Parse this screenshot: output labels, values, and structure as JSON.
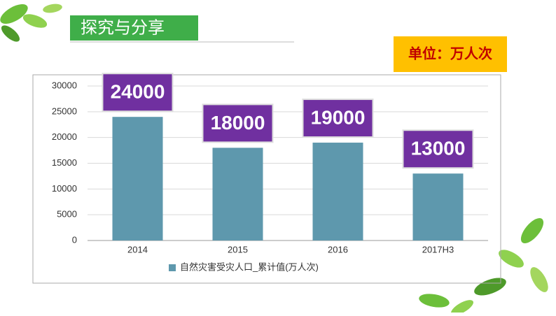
{
  "header": {
    "title": "探究与分享",
    "unit_note": "单位：万人次"
  },
  "chart_data": {
    "type": "bar",
    "categories": [
      "2014",
      "2015",
      "2016",
      "2017H3"
    ],
    "series": [
      {
        "name": "自然灾害受灾人口_累计值(万人次)",
        "color": "#5e98ad",
        "values": [
          24000,
          18000,
          19000,
          13000
        ]
      }
    ],
    "ylim": [
      0,
      30000
    ],
    "yticks": [
      0,
      5000,
      10000,
      15000,
      20000,
      25000,
      30000
    ],
    "grid": true,
    "legend": "bottom",
    "label_color": "#7030a0"
  }
}
